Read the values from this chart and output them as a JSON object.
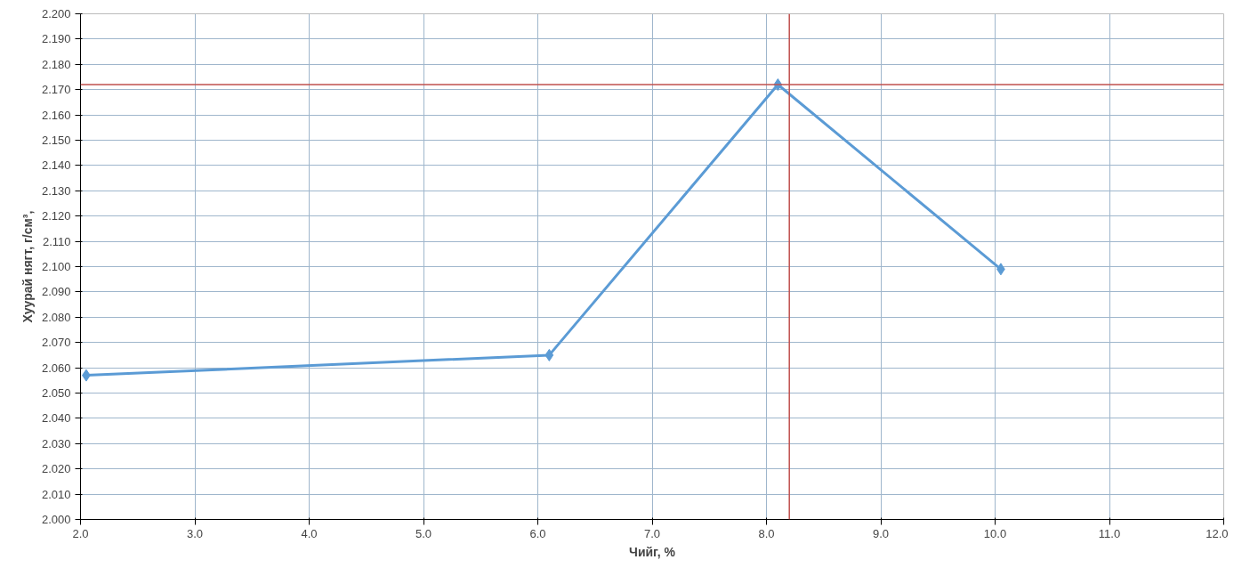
{
  "chart_data": {
    "type": "line",
    "xlabel": "Чийг, %",
    "ylabel": "Хуурай нягт, г/см³,",
    "x": [
      2.05,
      6.1,
      8.1,
      10.05
    ],
    "series": [
      {
        "color": "#5b9bd5",
        "values": [
          2.057,
          2.065,
          2.172,
          2.099
        ]
      }
    ],
    "marker": "diamond",
    "line_style": "solid",
    "grid": true,
    "xlim": [
      2.0,
      12.0
    ],
    "ylim": [
      2.0,
      2.2
    ],
    "xticks": [
      {
        "value": 2,
        "label": "2.0"
      },
      {
        "value": 3,
        "label": "3.0"
      },
      {
        "value": 4,
        "label": "4.0"
      },
      {
        "value": 5,
        "label": "5.0"
      },
      {
        "value": 6,
        "label": "6.0"
      },
      {
        "value": 7,
        "label": "7.0"
      },
      {
        "value": 8,
        "label": "8.0"
      },
      {
        "value": 9,
        "label": "9.0"
      },
      {
        "value": 10,
        "label": "10.0"
      },
      {
        "value": 11,
        "label": "11.0"
      },
      {
        "value": 12,
        "label": "12.0"
      }
    ],
    "yticks": [
      {
        "value": 2.0,
        "label": "2.000"
      },
      {
        "value": 2.01,
        "label": "2.010"
      },
      {
        "value": 2.02,
        "label": "2.020"
      },
      {
        "value": 2.03,
        "label": "2.030"
      },
      {
        "value": 2.04,
        "label": "2.040"
      },
      {
        "value": 2.05,
        "label": "2.050"
      },
      {
        "value": 2.06,
        "label": "2.060"
      },
      {
        "value": 2.07,
        "label": "2.070"
      },
      {
        "value": 2.08,
        "label": "2.080"
      },
      {
        "value": 2.09,
        "label": "2.090"
      },
      {
        "value": 2.1,
        "label": "2.100"
      },
      {
        "value": 2.11,
        "label": "2.110"
      },
      {
        "value": 2.12,
        "label": "2.120"
      },
      {
        "value": 2.13,
        "label": "2.130"
      },
      {
        "value": 2.14,
        "label": "2.140"
      },
      {
        "value": 2.15,
        "label": "2.150"
      },
      {
        "value": 2.16,
        "label": "2.160"
      },
      {
        "value": 2.17,
        "label": "2.170"
      },
      {
        "value": 2.18,
        "label": "2.180"
      },
      {
        "value": 2.19,
        "label": "2.190"
      },
      {
        "value": 2.2,
        "label": "2.200"
      }
    ],
    "ref_lines": [
      {
        "axis": "y",
        "value": 2.172,
        "color": "#c0504d"
      },
      {
        "axis": "x",
        "value": 8.2,
        "color": "#c0504d"
      }
    ]
  }
}
